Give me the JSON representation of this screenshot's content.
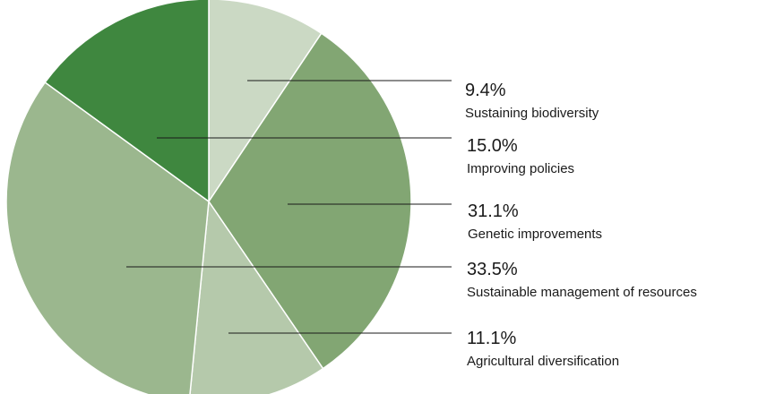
{
  "chart_data": {
    "type": "pie",
    "title": "",
    "start_angle_deg": 0,
    "direction": "clockwise",
    "slices": [
      {
        "label": "Sustaining biodiversity",
        "value": 9.4,
        "value_label": "9.4%",
        "color": "#cbd9c4"
      },
      {
        "label": "Genetic improvements",
        "value": 31.1,
        "value_label": "31.1%",
        "color": "#82a673"
      },
      {
        "label": "Agricultural diversification",
        "value": 11.1,
        "value_label": "11.1%",
        "color": "#b5c9ab"
      },
      {
        "label": "Sustainable management of resources",
        "value": 33.5,
        "value_label": "33.5%",
        "color": "#9bb78e"
      },
      {
        "label": "Improving policies",
        "value": 15.0,
        "value_label": "15.0%",
        "color": "#3f873f"
      }
    ],
    "legend_order": [
      "Sustaining biodiversity",
      "Improving policies",
      "Genetic improvements",
      "Sustainable management of resources",
      "Agricultural diversification"
    ]
  }
}
